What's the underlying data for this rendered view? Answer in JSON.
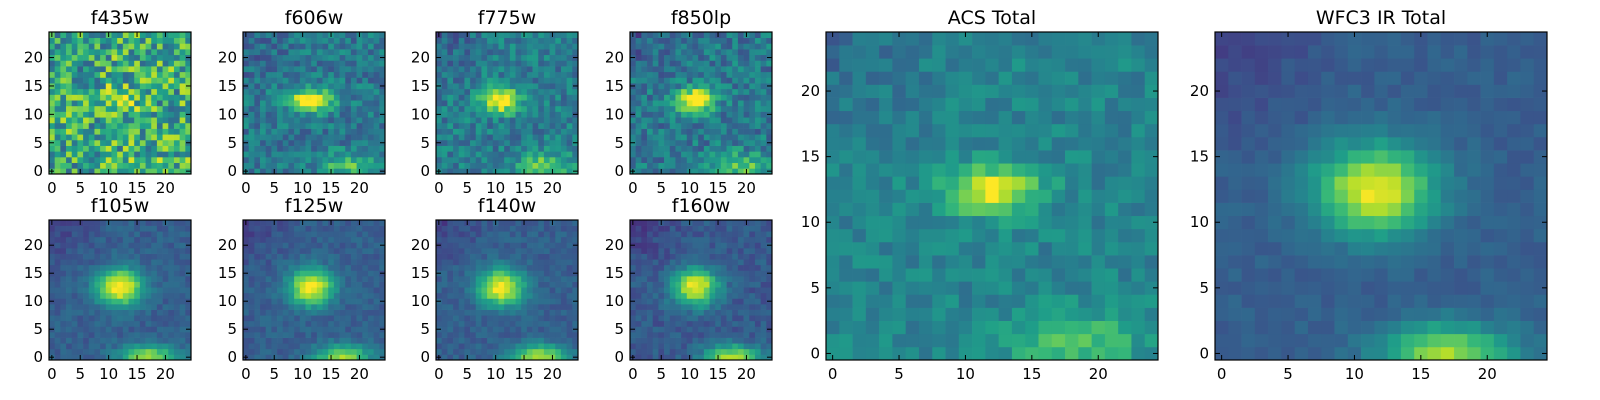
{
  "chart_data": [
    {
      "type": "heatmap",
      "title": "f435w",
      "colormap": "viridis",
      "grid": false,
      "xlim": [
        -0.5,
        24.5
      ],
      "ylim": [
        -0.5,
        24.5
      ],
      "xticks": [
        0,
        5,
        10,
        15,
        20
      ],
      "yticks": [
        0,
        5,
        10,
        15,
        20
      ],
      "source_center": [
        11.5,
        12.5
      ],
      "source_sigma": [
        2.2,
        1.6
      ],
      "source_peak": 0.25,
      "secondary_center": [
        18,
        1
      ],
      "secondary_peak": 0.05,
      "background": 0.62,
      "noise": 0.3
    },
    {
      "type": "heatmap",
      "title": "f606w",
      "colormap": "viridis",
      "grid": false,
      "xlim": [
        -0.5,
        24.5
      ],
      "ylim": [
        -0.5,
        24.5
      ],
      "xticks": [
        0,
        5,
        10,
        15,
        20
      ],
      "yticks": [
        0,
        5,
        10,
        15,
        20
      ],
      "source_center": [
        11.5,
        12.5
      ],
      "source_sigma": [
        2.6,
        1.3
      ],
      "source_peak": 0.7,
      "secondary_center": [
        18,
        1
      ],
      "secondary_peak": 0.3,
      "background": 0.4,
      "noise": 0.14
    },
    {
      "type": "heatmap",
      "title": "f775w",
      "colormap": "viridis",
      "grid": false,
      "xlim": [
        -0.5,
        24.5
      ],
      "ylim": [
        -0.5,
        24.5
      ],
      "xticks": [
        0,
        5,
        10,
        15,
        20
      ],
      "yticks": [
        0,
        5,
        10,
        15,
        20
      ],
      "source_center": [
        11,
        12.5
      ],
      "source_sigma": [
        2.3,
        1.5
      ],
      "source_peak": 0.7,
      "secondary_center": [
        19,
        1
      ],
      "secondary_peak": 0.35,
      "background": 0.42,
      "noise": 0.14
    },
    {
      "type": "heatmap",
      "title": "f850lp",
      "colormap": "viridis",
      "grid": false,
      "xlim": [
        -0.5,
        24.5
      ],
      "ylim": [
        -0.5,
        24.5
      ],
      "xticks": [
        0,
        5,
        10,
        15,
        20
      ],
      "yticks": [
        0,
        5,
        10,
        15,
        20
      ],
      "source_center": [
        11,
        12.5
      ],
      "source_sigma": [
        2.2,
        1.5
      ],
      "source_peak": 0.75,
      "secondary_center": [
        19,
        1
      ],
      "secondary_peak": 0.35,
      "background": 0.4,
      "noise": 0.15
    },
    {
      "type": "heatmap",
      "title": "ACS Total",
      "colormap": "viridis",
      "grid": false,
      "xlim": [
        -0.5,
        24.5
      ],
      "ylim": [
        -0.5,
        24.5
      ],
      "xticks": [
        0,
        5,
        10,
        15,
        20
      ],
      "yticks": [
        0,
        5,
        10,
        15,
        20
      ],
      "source_center": [
        12,
        12.5
      ],
      "source_sigma": [
        2.5,
        1.3
      ],
      "source_peak": 0.55,
      "secondary_center": [
        18,
        1
      ],
      "secondary_peak": 0.3,
      "background": 0.45,
      "noise": 0.09
    },
    {
      "type": "heatmap",
      "title": "f105w",
      "colormap": "viridis",
      "grid": false,
      "xlim": [
        -0.5,
        24.5
      ],
      "ylim": [
        -0.5,
        24.5
      ],
      "xticks": [
        0,
        5,
        10,
        15,
        20
      ],
      "yticks": [
        0,
        5,
        10,
        15,
        20
      ],
      "source_center": [
        12,
        12.5
      ],
      "source_sigma": [
        2.8,
        2.3
      ],
      "source_peak": 0.75,
      "secondary_center": [
        17,
        0
      ],
      "secondary_peak": 0.55,
      "background": 0.3,
      "noise": 0.06
    },
    {
      "type": "heatmap",
      "title": "f125w",
      "colormap": "viridis",
      "grid": false,
      "xlim": [
        -0.5,
        24.5
      ],
      "ylim": [
        -0.5,
        24.5
      ],
      "xticks": [
        0,
        5,
        10,
        15,
        20
      ],
      "yticks": [
        0,
        5,
        10,
        15,
        20
      ],
      "source_center": [
        11.5,
        12.5
      ],
      "source_sigma": [
        2.8,
        2.3
      ],
      "source_peak": 0.72,
      "secondary_center": [
        17,
        0
      ],
      "secondary_peak": 0.55,
      "background": 0.3,
      "noise": 0.06
    },
    {
      "type": "heatmap",
      "title": "f140w",
      "colormap": "viridis",
      "grid": false,
      "xlim": [
        -0.5,
        24.5
      ],
      "ylim": [
        -0.5,
        24.5
      ],
      "xticks": [
        0,
        5,
        10,
        15,
        20
      ],
      "yticks": [
        0,
        5,
        10,
        15,
        20
      ],
      "source_center": [
        11,
        12.5
      ],
      "source_sigma": [
        2.8,
        2.3
      ],
      "source_peak": 0.72,
      "secondary_center": [
        17.5,
        0
      ],
      "secondary_peak": 0.6,
      "background": 0.3,
      "noise": 0.06
    },
    {
      "type": "heatmap",
      "title": "f160w",
      "colormap": "viridis",
      "grid": false,
      "xlim": [
        -0.5,
        24.5
      ],
      "ylim": [
        -0.5,
        24.5
      ],
      "xticks": [
        0,
        5,
        10,
        15,
        20
      ],
      "yticks": [
        0,
        5,
        10,
        15,
        20
      ],
      "source_center": [
        11,
        12.5
      ],
      "source_sigma": [
        2.8,
        2.3
      ],
      "source_peak": 0.72,
      "secondary_center": [
        17.5,
        0
      ],
      "secondary_peak": 0.6,
      "background": 0.28,
      "noise": 0.07
    },
    {
      "type": "heatmap",
      "title": "WFC3 IR Total",
      "colormap": "viridis",
      "grid": false,
      "xlim": [
        -0.5,
        24.5
      ],
      "ylim": [
        -0.5,
        24.5
      ],
      "xticks": [
        0,
        5,
        10,
        15,
        20
      ],
      "yticks": [
        0,
        5,
        10,
        15,
        20
      ],
      "source_center": [
        11.5,
        12.5
      ],
      "source_sigma": [
        3.2,
        2.4
      ],
      "source_peak": 0.68,
      "secondary_center": [
        17,
        0
      ],
      "secondary_peak": 0.55,
      "background": 0.3,
      "noise": 0.04
    }
  ]
}
